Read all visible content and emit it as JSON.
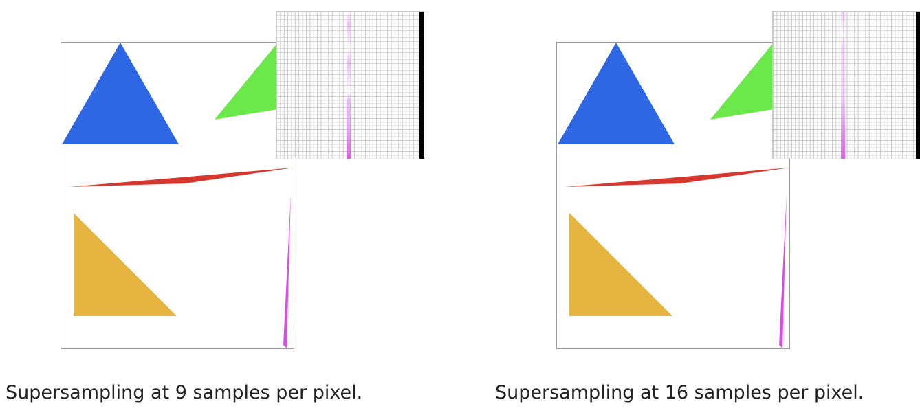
{
  "panels": [
    {
      "caption": "Supersampling at 9 samples per pixel."
    },
    {
      "caption": "Supersampling at 16 samples per pixel."
    }
  ],
  "colors": {
    "blue_triangle": "#2d67e3",
    "green_triangle": "#6be84a",
    "red_triangle": "#d6372e",
    "yellow_triangle": "#e6b441",
    "magenta_triangle": "#d94ce8",
    "zoom_bar": "#000000"
  }
}
